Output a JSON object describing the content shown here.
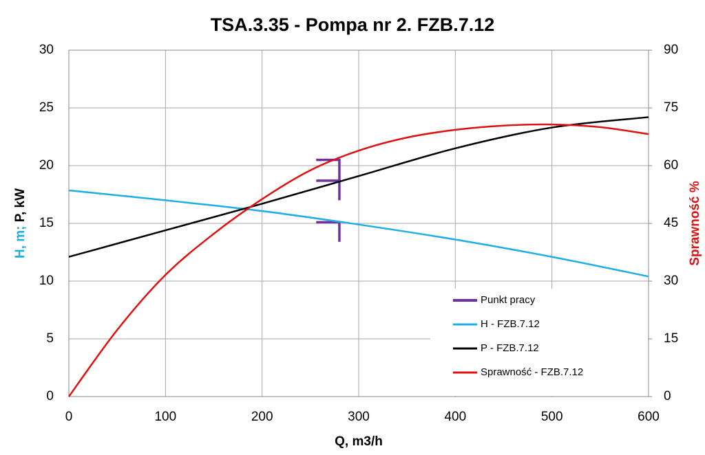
{
  "chart_data": {
    "type": "line",
    "title": "TSA.3.35 - Pompa nr 2. FZB.7.12",
    "xlabel": "Q, m3/h",
    "ylabel_parts": [
      {
        "text": "H, m;",
        "color": "#1eaee6"
      },
      {
        "text": "P, kW",
        "color": "#000000"
      }
    ],
    "y2label": "Sprawność %",
    "y2label_color": "#e01010",
    "xlim": [
      0,
      600
    ],
    "xticks": [
      0,
      100,
      200,
      300,
      400,
      500,
      600
    ],
    "ylim": [
      0,
      30
    ],
    "yticks": [
      0,
      5,
      10,
      15,
      20,
      25,
      30
    ],
    "y2lim": [
      0,
      90
    ],
    "y2ticks": [
      0,
      15,
      30,
      45,
      60,
      75,
      90
    ],
    "grid": true,
    "legend": "lower right",
    "series": [
      {
        "name": "Punkt pracy",
        "color": "#7030a0",
        "smooth": false,
        "x": [
          256,
          280,
          280,
          280,
          256,
          280,
          280,
          256,
          280,
          280
        ],
        "values": [
          20.5,
          20.5,
          17.0,
          null,
          18.7,
          18.7,
          null,
          15.1,
          15.1,
          13.4
        ]
      },
      {
        "name": "H - FZB.7.12",
        "color": "#1eaee6",
        "smooth": true,
        "x": [
          0,
          100,
          200,
          300,
          400,
          500,
          600
        ],
        "values": [
          17.86,
          17.0,
          16.07,
          14.9,
          13.6,
          12.1,
          10.4
        ]
      },
      {
        "name": "P - FZB.7.12",
        "color": "#000000",
        "smooth": true,
        "x": [
          0,
          100,
          200,
          300,
          400,
          500,
          600
        ],
        "values": [
          12.1,
          14.4,
          16.7,
          19.1,
          21.5,
          23.3,
          24.2
        ]
      },
      {
        "name": "Sprawność - FZB.7.12",
        "color": "#e01010",
        "smooth": true,
        "axis": "y2",
        "x": [
          0,
          50,
          100,
          150,
          200,
          250,
          300,
          350,
          400,
          450,
          500,
          550,
          600
        ],
        "values": [
          0,
          17.3,
          31.6,
          42.3,
          51.3,
          58.8,
          63.9,
          67.3,
          69.3,
          70.4,
          70.7,
          70.0,
          68.2
        ]
      }
    ]
  }
}
